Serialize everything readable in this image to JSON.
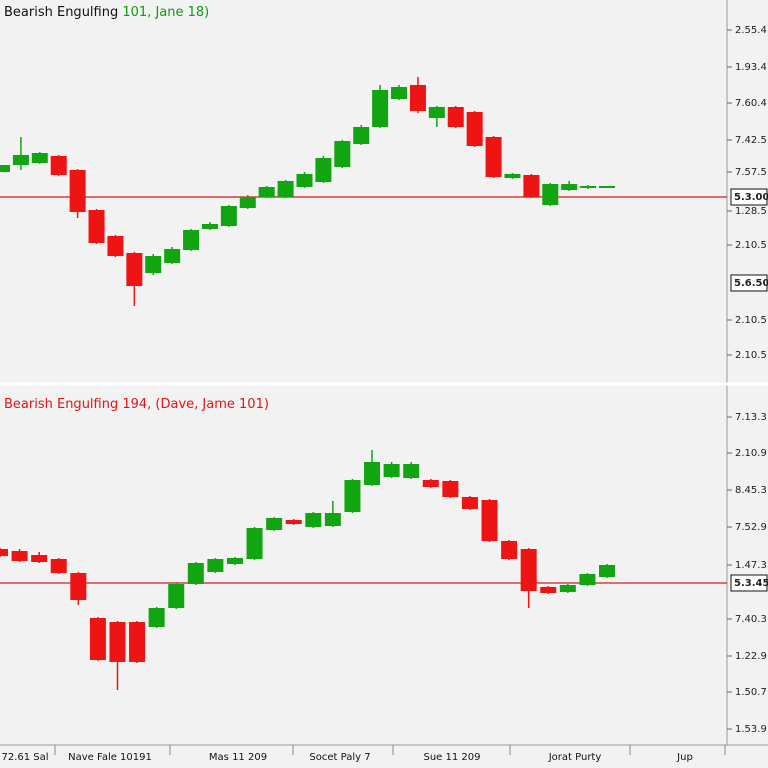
{
  "chart_data": [
    {
      "type": "candlestick",
      "title": "Bearish Engulfing",
      "title_suffix": "101, Jane 18)",
      "title_color": "#111111",
      "title_suffix_color": "#0f9a0f",
      "up_color": "#12a512",
      "down_color": "#ee1414",
      "ylim": [
        0,
        383
      ],
      "yticks": [
        {
          "value": 353,
          "label": "2.55.4"
        },
        {
          "value": 316,
          "label": "1.93.4"
        },
        {
          "value": 280,
          "label": "7.60.4"
        },
        {
          "value": 243,
          "label": "7.42.5"
        },
        {
          "value": 211,
          "label": "7.57.5"
        },
        {
          "value": 172,
          "label": "1.28.5"
        },
        {
          "value": 138,
          "label": "2.10.5"
        },
        {
          "value": 63,
          "label": "2.10.5"
        },
        {
          "value": 28,
          "label": "2.10.5"
        }
      ],
      "hline": {
        "value": 186,
        "label": "5.3.00",
        "color": "#d41c1c"
      },
      "price_label": {
        "value": 100,
        "label": "5.6.50"
      },
      "open": [
        211,
        218,
        220,
        227,
        213,
        173,
        147,
        130,
        110,
        120,
        133,
        154,
        157,
        175,
        186,
        186,
        196,
        201,
        216,
        239,
        256,
        284,
        298,
        265,
        276,
        271,
        246,
        205,
        208,
        178,
        193,
        195,
        195
      ],
      "high": [
        218,
        246,
        231,
        228,
        214,
        174,
        148,
        131,
        129,
        136,
        154,
        161,
        178,
        188,
        197,
        203,
        211,
        227,
        243,
        258,
        298,
        298,
        306,
        277,
        277,
        272,
        247,
        210,
        209,
        200,
        202,
        198,
        197
      ],
      "low": [
        211,
        213,
        219,
        207,
        165,
        139,
        126,
        77,
        108,
        119,
        132,
        153,
        156,
        174,
        185,
        185,
        195,
        200,
        215,
        238,
        255,
        283,
        270,
        256,
        255,
        236,
        205,
        204,
        185,
        177,
        192,
        194,
        195
      ],
      "close": [
        218,
        228,
        230,
        208,
        171,
        140,
        127,
        97,
        127,
        134,
        153,
        159,
        177,
        186,
        196,
        202,
        209,
        225,
        242,
        256,
        293,
        296,
        272,
        276,
        256,
        237,
        206,
        209,
        186,
        199,
        199,
        197,
        197
      ]
    },
    {
      "type": "candlestick",
      "title": "Bearish Engulfing 194, (Dave, Jame 101)",
      "title_color": "#e01515",
      "up_color": "#12a512",
      "down_color": "#ee1414",
      "ylim": [
        0,
        360
      ],
      "yticks": [
        {
          "value": 328,
          "label": "7.13.3"
        },
        {
          "value": 292,
          "label": "2.10.9"
        },
        {
          "value": 255,
          "label": "8.45.3"
        },
        {
          "value": 218,
          "label": "7.52.9"
        },
        {
          "value": 180,
          "label": "1.47.3"
        },
        {
          "value": 126,
          "label": "7.40.3"
        },
        {
          "value": 89,
          "label": "1.22.9"
        },
        {
          "value": 53,
          "label": "1.50.7"
        },
        {
          "value": 16,
          "label": "1.53.9"
        }
      ],
      "hline": {
        "value": 162,
        "label": "5.3.45",
        "color": "#d41c1c"
      },
      "open": [
        196,
        194,
        190,
        186,
        172,
        127,
        123,
        123,
        118,
        137,
        161,
        173,
        181,
        186,
        215,
        225,
        218,
        219,
        233,
        260,
        268,
        267,
        265,
        264,
        248,
        245,
        204,
        196,
        158,
        153,
        160,
        168
      ],
      "high": [
        197,
        196,
        193,
        187,
        173,
        128,
        124,
        124,
        138,
        162,
        183,
        187,
        188,
        218,
        228,
        226,
        233,
        244,
        266,
        295,
        283,
        283,
        266,
        265,
        249,
        246,
        205,
        197,
        159,
        161,
        172,
        181
      ],
      "low": [
        188,
        183,
        182,
        171,
        140,
        84,
        55,
        82,
        117,
        136,
        160,
        172,
        180,
        185,
        214,
        220,
        217,
        218,
        232,
        259,
        267,
        266,
        257,
        247,
        235,
        203,
        185,
        137,
        151,
        152,
        159,
        167
      ],
      "close": [
        189,
        184,
        183,
        172,
        145,
        85,
        83,
        83,
        137,
        161,
        182,
        186,
        187,
        217,
        227,
        221,
        232,
        232,
        265,
        283,
        281,
        281,
        258,
        248,
        236,
        204,
        186,
        154,
        152,
        160,
        171,
        180
      ],
      "x_labels": [
        "72.61 Sal",
        "Nave Fale 10191",
        "Mas 11 209",
        "Socet Paly 7",
        "Sue 11 209",
        "Jorat Purty",
        "Jup"
      ]
    }
  ]
}
